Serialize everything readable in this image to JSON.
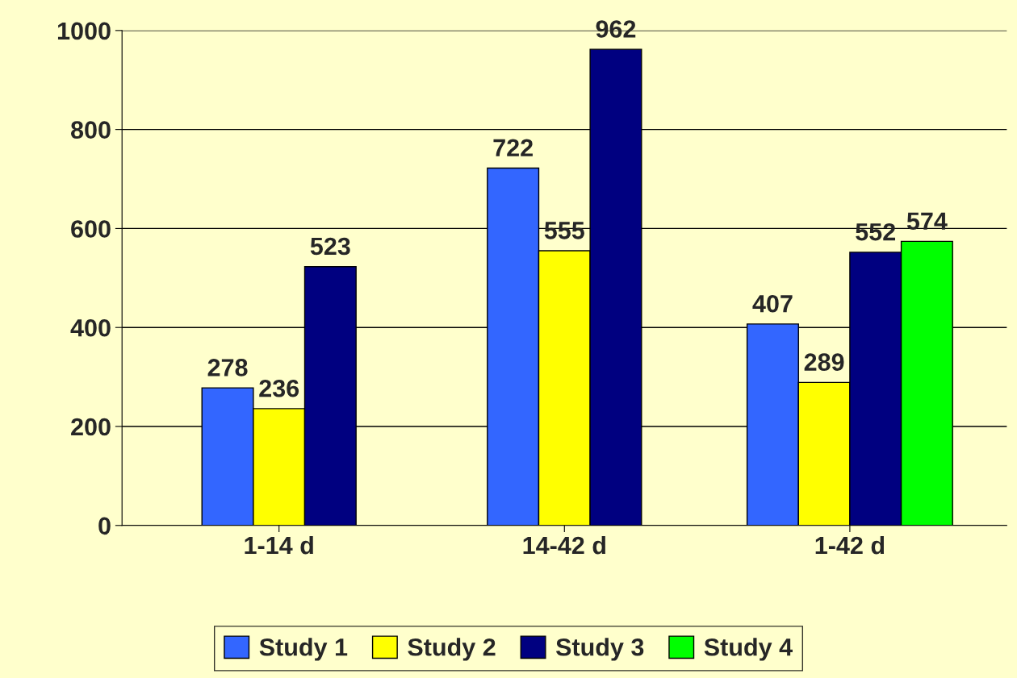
{
  "chart_data": {
    "type": "bar",
    "categories": [
      "1-14 d",
      "14-42 d",
      "1-42 d"
    ],
    "series": [
      {
        "name": "Study 1",
        "color": "#3366ff",
        "values": [
          278,
          722,
          407
        ]
      },
      {
        "name": "Study 2",
        "color": "#ffff00",
        "values": [
          236,
          555,
          289
        ]
      },
      {
        "name": "Study 3",
        "color": "#000080",
        "values": [
          523,
          962,
          552
        ]
      },
      {
        "name": "Study 4",
        "color": "#00ff00",
        "values": [
          null,
          null,
          574
        ]
      }
    ],
    "ylim": [
      0,
      1000
    ],
    "yticks": [
      0,
      200,
      400,
      600,
      800,
      1000
    ],
    "grid": "y",
    "legend": "bottom",
    "data_labels": true
  }
}
